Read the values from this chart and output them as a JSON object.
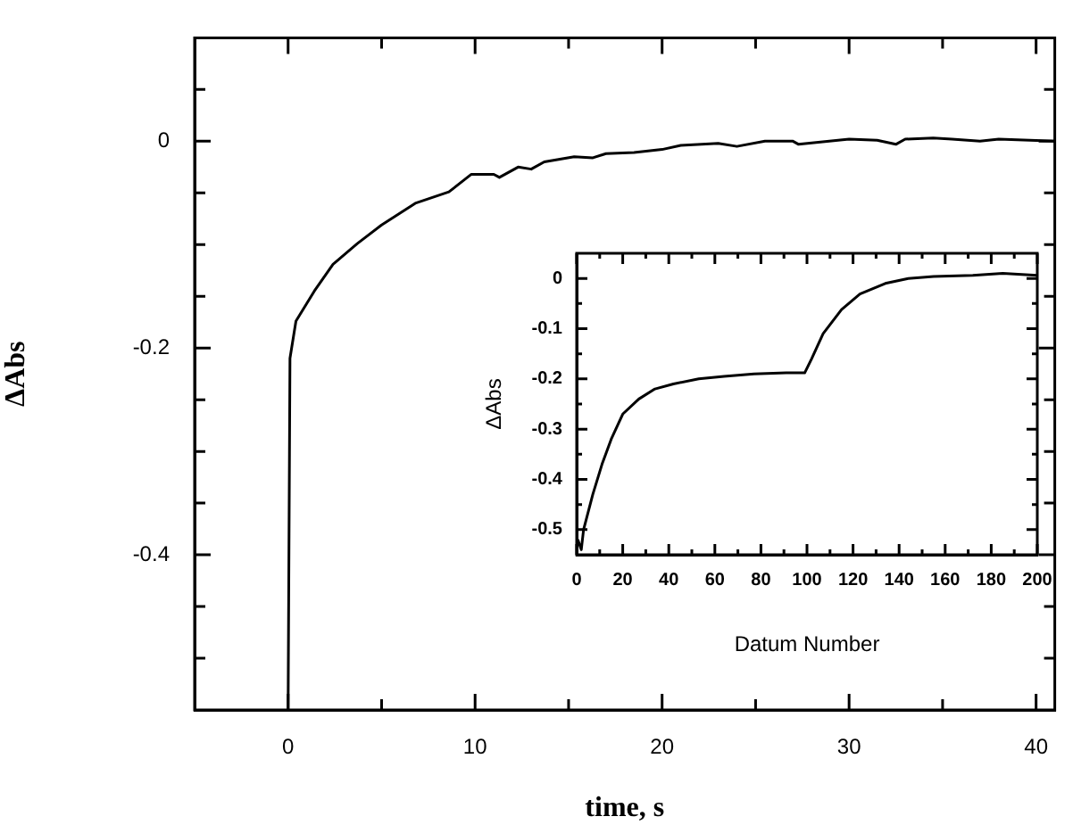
{
  "chart_data": [
    {
      "type": "line",
      "xlabel": "time, s",
      "ylabel": "ΔAbs",
      "marker": "none",
      "line_style": "solid",
      "xlim": [
        -5,
        41
      ],
      "xticks": [
        0,
        {
          "value": 5,
          "label": null
        },
        10,
        {
          "value": 15,
          "label": null
        },
        20,
        {
          "value": 25,
          "label": null
        },
        30,
        {
          "value": 35,
          "label": null
        },
        40
      ],
      "ylim": [
        -0.55,
        0.1
      ],
      "yticks": [
        {
          "value": 0.05,
          "label": null
        },
        0,
        {
          "value": -0.05,
          "label": null
        },
        {
          "value": -0.1,
          "label": null
        },
        {
          "value": -0.15,
          "label": null
        },
        -0.2,
        {
          "value": -0.25,
          "label": null
        },
        {
          "value": -0.3,
          "label": null
        },
        {
          "value": -0.35,
          "label": null
        },
        -0.4,
        {
          "value": -0.45,
          "label": null
        },
        {
          "value": -0.5,
          "label": null
        }
      ],
      "series": [
        {
          "color": "#000000",
          "x": [
            0,
            0.1,
            0.42,
            1.4,
            2.4,
            3.7,
            5,
            6.8,
            8.6,
            9.8,
            11,
            11.3,
            12.3,
            13,
            13.7,
            15.3,
            16.3,
            17,
            18.5,
            20,
            21,
            23,
            24,
            25.5,
            27,
            27.3,
            30,
            31.5,
            32.5,
            33,
            34.5,
            35.5,
            37,
            38,
            41
          ],
          "values": [
            -0.55,
            -0.21,
            -0.174,
            -0.145,
            -0.119,
            -0.099,
            -0.081,
            -0.06,
            -0.049,
            -0.032,
            -0.032,
            -0.035,
            -0.025,
            -0.027,
            -0.02,
            -0.015,
            -0.016,
            -0.012,
            -0.011,
            -0.008,
            -0.004,
            -0.002,
            -0.005,
            0,
            0,
            -0.003,
            0.002,
            0.001,
            -0.003,
            0.002,
            0.003,
            0.002,
            0,
            0.002,
            0
          ]
        }
      ]
    },
    {
      "type": "line",
      "xlabel": "Datum Number",
      "ylabel": "ΔAbs",
      "marker": "none",
      "line_style": "solid",
      "xlim": [
        0,
        200
      ],
      "xticks": [
        0,
        {
          "value": 10,
          "label": null
        },
        20,
        {
          "value": 30,
          "label": null
        },
        40,
        {
          "value": 50,
          "label": null
        },
        60,
        {
          "value": 70,
          "label": null
        },
        80,
        {
          "value": 90,
          "label": null
        },
        100,
        {
          "value": 110,
          "label": null
        },
        120,
        {
          "value": 130,
          "label": null
        },
        140,
        {
          "value": 150,
          "label": null
        },
        160,
        {
          "value": 170,
          "label": null
        },
        180,
        {
          "value": 190,
          "label": null
        },
        200
      ],
      "ylim": [
        -0.55,
        0.05
      ],
      "yticks": [
        0,
        {
          "value": -0.05,
          "label": null
        },
        -0.1,
        {
          "value": -0.15,
          "label": null
        },
        -0.2,
        {
          "value": -0.25,
          "label": null
        },
        -0.3,
        {
          "value": -0.35,
          "label": null
        },
        -0.4,
        {
          "value": -0.45,
          "label": null
        },
        -0.5
      ],
      "series": [
        {
          "color": "#000000",
          "x": [
            0.5,
            2,
            3,
            7,
            11,
            15,
            20,
            27,
            34,
            42,
            53,
            64,
            77,
            91,
            99,
            102,
            107,
            115,
            123,
            134,
            144,
            155,
            172,
            185,
            200
          ],
          "values": [
            -0.52,
            -0.54,
            -0.5,
            -0.43,
            -0.37,
            -0.32,
            -0.27,
            -0.24,
            -0.22,
            -0.21,
            -0.2,
            -0.195,
            -0.19,
            -0.188,
            -0.188,
            -0.16,
            -0.11,
            -0.062,
            -0.031,
            -0.01,
            0,
            0.004,
            0.006,
            0.01,
            0.006
          ]
        }
      ]
    }
  ]
}
